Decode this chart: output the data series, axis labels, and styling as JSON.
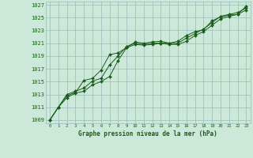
{
  "title": "Graphe pression niveau de la mer (hPa)",
  "bg_color": "#cce8d8",
  "grid_color": "#99bbbb",
  "line_color": "#1a5c1a",
  "marker_color": "#1a5c1a",
  "xlim": [
    -0.5,
    23.5
  ],
  "ylim": [
    1008.5,
    1027.5
  ],
  "yticks": [
    1009,
    1011,
    1013,
    1015,
    1017,
    1019,
    1021,
    1023,
    1025,
    1027
  ],
  "xticks": [
    0,
    1,
    2,
    3,
    4,
    5,
    6,
    7,
    8,
    9,
    10,
    11,
    12,
    13,
    14,
    15,
    16,
    17,
    18,
    19,
    20,
    21,
    22,
    23
  ],
  "series": [
    [
      1009.0,
      1011.0,
      1012.8,
      1013.3,
      1015.2,
      1015.5,
      1016.8,
      1019.2,
      1019.5,
      1020.3,
      1021.2,
      1021.0,
      1021.2,
      1021.3,
      1021.0,
      1021.3,
      1022.2,
      1022.8,
      1023.1,
      1024.5,
      1025.1,
      1025.4,
      1025.5,
      1026.8
    ],
    [
      1009.0,
      1011.0,
      1013.0,
      1013.5,
      1014.0,
      1015.1,
      1015.5,
      1017.6,
      1019.0,
      1020.5,
      1021.0,
      1020.8,
      1021.0,
      1021.0,
      1021.0,
      1021.0,
      1021.8,
      1022.5,
      1023.2,
      1024.2,
      1025.2,
      1025.5,
      1025.8,
      1026.5
    ],
    [
      1009.0,
      1011.0,
      1012.5,
      1013.2,
      1013.5,
      1014.5,
      1015.0,
      1015.8,
      1018.3,
      1020.3,
      1020.8,
      1020.7,
      1020.8,
      1021.0,
      1020.8,
      1020.8,
      1021.3,
      1022.2,
      1022.8,
      1023.8,
      1024.8,
      1025.2,
      1025.5,
      1026.2
    ]
  ]
}
